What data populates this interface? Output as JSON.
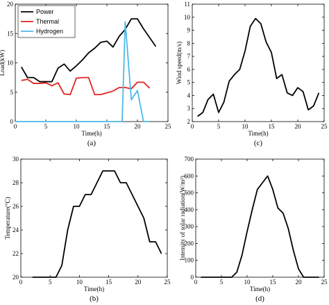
{
  "chart_data": [
    {
      "type": "line",
      "caption": "(a)",
      "xlabel": "Time(h)",
      "ylabel": "Load(kW)",
      "xlim": [
        0,
        25
      ],
      "ylim": [
        0,
        20
      ],
      "xticks": [
        0,
        5,
        10,
        15,
        20,
        25
      ],
      "yticks": [
        0,
        5,
        10,
        15,
        20
      ],
      "legend": "top-left",
      "series": [
        {
          "name": "Power",
          "color": "#000000",
          "points": [
            [
              1,
              9.3
            ],
            [
              2,
              7.5
            ],
            [
              3,
              7.5
            ],
            [
              4,
              6.8
            ],
            [
              5,
              6.8
            ],
            [
              6,
              6.8
            ],
            [
              7,
              9.1
            ],
            [
              8,
              9.8
            ],
            [
              9,
              8.6
            ],
            [
              10,
              9.5
            ],
            [
              11,
              10.5
            ],
            [
              12,
              11.7
            ],
            [
              13,
              12.5
            ],
            [
              14,
              13.5
            ],
            [
              15,
              13.7
            ],
            [
              16,
              12.7
            ],
            [
              17,
              14.5
            ],
            [
              18,
              15.7
            ],
            [
              19,
              17.5
            ],
            [
              20,
              17.5
            ],
            [
              21,
              15.8
            ],
            [
              22,
              14.3
            ],
            [
              23,
              12.8
            ]
          ]
        },
        {
          "name": "Thermal",
          "color": "#e0231e",
          "points": [
            [
              1,
              7.0
            ],
            [
              2,
              7.2
            ],
            [
              3,
              6.5
            ],
            [
              4,
              6.5
            ],
            [
              5,
              6.6
            ],
            [
              6,
              6.1
            ],
            [
              7,
              6.6
            ],
            [
              8,
              4.7
            ],
            [
              9,
              4.6
            ],
            [
              10,
              7.4
            ],
            [
              11,
              7.5
            ],
            [
              12,
              7.5
            ],
            [
              13,
              4.6
            ],
            [
              14,
              4.6
            ],
            [
              15,
              4.9
            ],
            [
              16,
              5.2
            ],
            [
              17,
              5.8
            ],
            [
              18,
              5.8
            ],
            [
              19,
              5.6
            ],
            [
              20,
              6.7
            ],
            [
              21,
              6.7
            ],
            [
              22,
              5.7
            ]
          ]
        },
        {
          "name": "Hydrogen",
          "color": "#4db8e8",
          "points": [
            [
              0,
              0
            ],
            [
              17,
              0
            ],
            [
              17.5,
              0
            ],
            [
              18,
              17.0
            ],
            [
              19,
              3.7
            ],
            [
              20,
              5.3
            ],
            [
              21,
              0
            ],
            [
              22,
              0
            ]
          ]
        }
      ]
    },
    {
      "type": "line",
      "caption": "(c)",
      "xlabel": "Time(h)",
      "ylabel": "Wind speed(m/s)",
      "xlim": [
        0,
        25
      ],
      "ylim": [
        2,
        11
      ],
      "xticks": [
        0,
        5,
        10,
        15,
        20,
        25
      ],
      "yticks": [
        2,
        3,
        4,
        5,
        6,
        7,
        8,
        9,
        10,
        11
      ],
      "series": [
        {
          "color": "#000000",
          "points": [
            [
              1,
              2.4
            ],
            [
              2,
              2.7
            ],
            [
              3,
              3.7
            ],
            [
              4,
              4.1
            ],
            [
              5,
              2.7
            ],
            [
              6,
              3.5
            ],
            [
              7,
              5.1
            ],
            [
              8,
              5.6
            ],
            [
              9,
              6.0
            ],
            [
              10,
              7.4
            ],
            [
              11,
              9.3
            ],
            [
              12,
              9.9
            ],
            [
              13,
              9.5
            ],
            [
              14,
              8.1
            ],
            [
              15,
              7.3
            ],
            [
              16,
              5.3
            ],
            [
              17,
              5.6
            ],
            [
              18,
              4.2
            ],
            [
              19,
              4.0
            ],
            [
              20,
              4.6
            ],
            [
              21,
              4.3
            ],
            [
              22,
              2.9
            ],
            [
              23,
              3.2
            ],
            [
              24,
              4.2
            ]
          ]
        }
      ]
    },
    {
      "type": "line",
      "caption": "(b)",
      "xlabel": "Time(h)",
      "ylabel": "Temperature(°C)",
      "xlim": [
        0,
        25
      ],
      "ylim": [
        20,
        30
      ],
      "xticks": [
        0,
        5,
        10,
        15,
        20,
        25
      ],
      "yticks": [
        20,
        22,
        24,
        26,
        28,
        30
      ],
      "series": [
        {
          "color": "#000000",
          "points": [
            [
              2,
              20
            ],
            [
              3,
              20
            ],
            [
              4,
              20
            ],
            [
              5,
              20
            ],
            [
              6,
              20
            ],
            [
              7,
              21
            ],
            [
              8,
              24
            ],
            [
              9,
              26
            ],
            [
              10,
              26
            ],
            [
              11,
              27
            ],
            [
              12,
              27
            ],
            [
              13,
              28
            ],
            [
              14,
              29
            ],
            [
              15,
              29
            ],
            [
              16,
              29
            ],
            [
              17,
              28
            ],
            [
              18,
              28
            ],
            [
              19,
              27
            ],
            [
              20,
              26
            ],
            [
              21,
              25
            ],
            [
              22,
              23
            ],
            [
              23,
              23
            ],
            [
              24,
              22
            ]
          ]
        }
      ]
    },
    {
      "type": "line",
      "caption": "(d)",
      "xlabel": "Time(h)",
      "ylabel": "Intensity of solar radiation(W/m²)",
      "xlim": [
        0,
        25
      ],
      "ylim": [
        0,
        700
      ],
      "xticks": [
        0,
        5,
        10,
        15,
        20,
        25
      ],
      "yticks": [
        0,
        100,
        200,
        300,
        400,
        500,
        600,
        700
      ],
      "series": [
        {
          "color": "#000000",
          "points": [
            [
              1,
              0
            ],
            [
              2,
              0
            ],
            [
              3,
              0
            ],
            [
              4,
              0
            ],
            [
              5,
              0
            ],
            [
              6,
              0
            ],
            [
              7,
              0
            ],
            [
              8,
              30
            ],
            [
              9,
              130
            ],
            [
              10,
              270
            ],
            [
              11,
              400
            ],
            [
              12,
              520
            ],
            [
              13,
              560
            ],
            [
              14,
              600
            ],
            [
              15,
              520
            ],
            [
              16,
              410
            ],
            [
              17,
              380
            ],
            [
              18,
              290
            ],
            [
              19,
              160
            ],
            [
              20,
              50
            ],
            [
              21,
              0
            ],
            [
              22,
              0
            ],
            [
              23,
              0
            ],
            [
              24,
              0
            ]
          ]
        }
      ]
    }
  ]
}
